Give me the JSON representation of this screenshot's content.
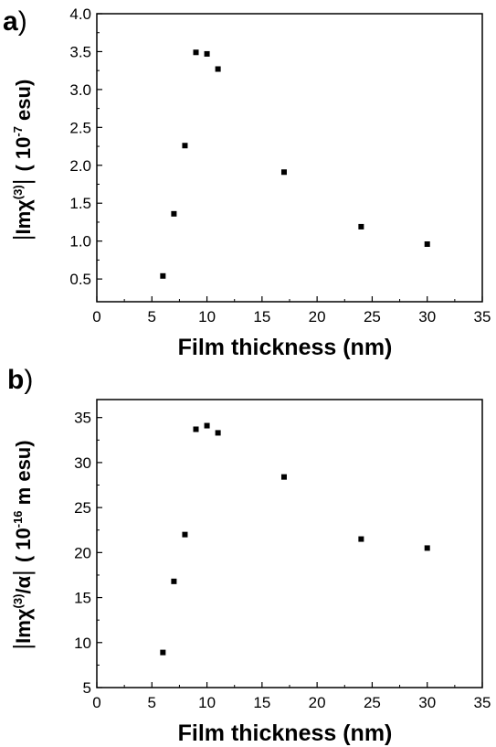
{
  "chart_data": [
    {
      "type": "scatter",
      "panel_label": "a",
      "panel_paren": ")",
      "xlabel": "Film thickness (nm)",
      "ylabel_parts": {
        "bar_open": "|",
        "main": "Imχ",
        "sup": "(3)",
        "bar_close": "|",
        "unit_open": "( 10",
        "unit_sup": "-7",
        "unit_close": " esu)"
      },
      "xlim": [
        0,
        35
      ],
      "ylim": [
        0.2,
        4.0
      ],
      "xticks": [
        0,
        5,
        10,
        15,
        20,
        25,
        30,
        35
      ],
      "yticks": [
        0.5,
        1.0,
        1.5,
        2.0,
        2.5,
        3.0,
        3.5,
        4.0
      ],
      "xtick_labels": [
        "0",
        "5",
        "10",
        "15",
        "20",
        "25",
        "30",
        "35"
      ],
      "ytick_labels": [
        "0.5",
        "1.0",
        "1.5",
        "2.0",
        "2.5",
        "3.0",
        "3.5",
        "4.0"
      ],
      "grid": false,
      "marker_color": "#000000",
      "points": [
        {
          "x": 6,
          "y": 0.54
        },
        {
          "x": 7,
          "y": 1.36
        },
        {
          "x": 8,
          "y": 2.26
        },
        {
          "x": 9,
          "y": 3.49
        },
        {
          "x": 10,
          "y": 3.47
        },
        {
          "x": 11,
          "y": 3.27
        },
        {
          "x": 17,
          "y": 1.91
        },
        {
          "x": 24,
          "y": 1.19
        },
        {
          "x": 30,
          "y": 0.96
        }
      ]
    },
    {
      "type": "scatter",
      "panel_label": "b",
      "panel_paren": ")",
      "xlabel": "Film thickness (nm)",
      "ylabel_parts": {
        "bar_open": "|",
        "main": "Imχ",
        "sup": "(3)",
        "after_sup": "/α",
        "bar_close": "|",
        "unit_open": "( 10",
        "unit_sup": "-16",
        "unit_close": " m esu)"
      },
      "xlim": [
        0,
        35
      ],
      "ylim": [
        5,
        37
      ],
      "xticks": [
        0,
        5,
        10,
        15,
        20,
        25,
        30,
        35
      ],
      "yticks": [
        5,
        10,
        15,
        20,
        25,
        30,
        35
      ],
      "xtick_labels": [
        "0",
        "5",
        "10",
        "15",
        "20",
        "25",
        "30",
        "35"
      ],
      "ytick_labels": [
        "5",
        "10",
        "15",
        "20",
        "25",
        "30",
        "35"
      ],
      "grid": false,
      "marker_color": "#000000",
      "points": [
        {
          "x": 6,
          "y": 8.9
        },
        {
          "x": 7,
          "y": 16.8
        },
        {
          "x": 8,
          "y": 22.0
        },
        {
          "x": 9,
          "y": 33.7
        },
        {
          "x": 10,
          "y": 34.1
        },
        {
          "x": 11,
          "y": 33.3
        },
        {
          "x": 17,
          "y": 28.4
        },
        {
          "x": 24,
          "y": 21.5
        },
        {
          "x": 30,
          "y": 20.5
        }
      ]
    }
  ]
}
